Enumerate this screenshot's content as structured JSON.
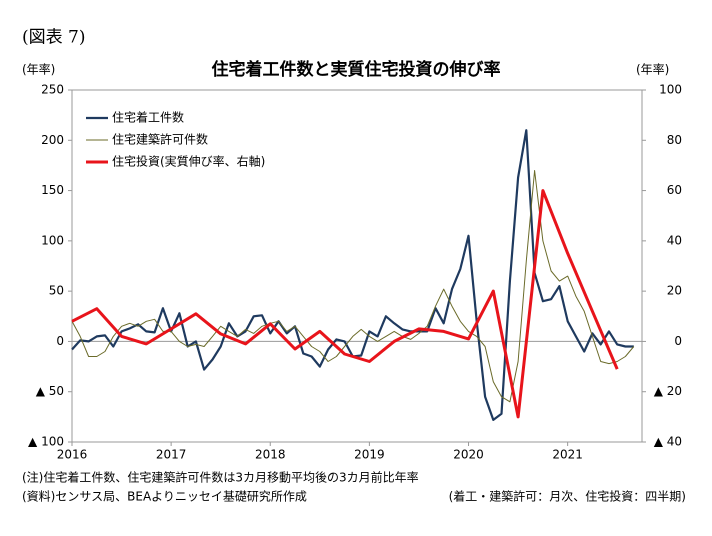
{
  "chart_data": {
    "type": "line",
    "figure_label": "(図表 7)",
    "title": "住宅着工件数と実質住宅投資の伸び率",
    "y_unit": "(年率)",
    "y2_unit": "(年率)",
    "note": "(注)住宅着工件数、住宅建築許可件数は3カ月移動平均後の3カ月前比年率",
    "source": "(資料)センサス局、BEAよりニッセイ基礎研究所作成",
    "frequency_note": "(着工・建築許可：月次、住宅投資：四半期)",
    "x": [
      2016,
      2016.083,
      2016.167,
      2016.25,
      2016.333,
      2016.417,
      2016.5,
      2016.583,
      2016.667,
      2016.75,
      2016.833,
      2016.917,
      2017,
      2017.083,
      2017.167,
      2017.25,
      2017.333,
      2017.417,
      2017.5,
      2017.583,
      2017.667,
      2017.75,
      2017.833,
      2017.917,
      2018,
      2018.083,
      2018.167,
      2018.25,
      2018.333,
      2018.417,
      2018.5,
      2018.583,
      2018.667,
      2018.75,
      2018.833,
      2018.917,
      2019,
      2019.083,
      2019.167,
      2019.25,
      2019.333,
      2019.417,
      2019.5,
      2019.583,
      2019.667,
      2019.75,
      2019.833,
      2019.917,
      2020,
      2020.083,
      2020.167,
      2020.25,
      2020.333,
      2020.417,
      2020.5,
      2020.583,
      2020.667,
      2020.75,
      2020.833,
      2020.917,
      2021,
      2021.083,
      2021.167,
      2021.25,
      2021.333,
      2021.417,
      2021.5,
      2021.583,
      2021.667
    ],
    "series": [
      {
        "name": "住宅着工件数",
        "color": "#1f3a5f",
        "width": 2.2,
        "values": [
          -8,
          1,
          0,
          5,
          6,
          -5,
          10,
          13,
          17,
          10,
          9,
          33,
          10,
          28,
          -5,
          0,
          -28,
          -18,
          -5,
          18,
          5,
          10,
          25,
          26,
          8,
          20,
          8,
          15,
          -12,
          -15,
          -25,
          -8,
          2,
          0,
          -15,
          -14,
          10,
          5,
          25,
          18,
          12,
          10,
          10,
          10,
          33,
          18,
          52,
          72,
          105,
          20,
          -55,
          -78,
          -72,
          60,
          163,
          210,
          68,
          40,
          42,
          55,
          20,
          5,
          -10,
          8,
          -3,
          10,
          -3,
          -5,
          -5
        ]
      },
      {
        "name": "住宅建築許可件数",
        "color": "#6b6b2a",
        "width": 1,
        "values": [
          20,
          5,
          -15,
          -15,
          -10,
          5,
          15,
          18,
          15,
          20,
          22,
          10,
          10,
          0,
          -5,
          -3,
          -5,
          5,
          15,
          10,
          5,
          12,
          8,
          15,
          18,
          20,
          10,
          15,
          5,
          -5,
          -10,
          -20,
          -15,
          -5,
          5,
          12,
          5,
          0,
          5,
          10,
          5,
          2,
          8,
          15,
          35,
          52,
          35,
          20,
          10,
          5,
          -5,
          -40,
          -55,
          -60,
          -20,
          80,
          170,
          100,
          70,
          60,
          65,
          45,
          30,
          5,
          -20,
          -22,
          -20,
          -15,
          -5
        ]
      },
      {
        "name": "住宅投資(実質伸び率、右軸)",
        "color": "#e8141b",
        "width": 3,
        "axis": "y2",
        "x": [
          2016,
          2016.25,
          2016.5,
          2016.75,
          2017,
          2017.25,
          2017.5,
          2017.75,
          2018,
          2018.25,
          2018.5,
          2018.75,
          2019,
          2019.25,
          2019.5,
          2019.75,
          2020,
          2020.25,
          2020.5,
          2020.75,
          2021,
          2021.25,
          2021.5
        ],
        "values": [
          8,
          13,
          2,
          -1,
          5,
          11,
          3,
          -1,
          7,
          -3,
          4,
          -5,
          -8,
          0,
          5,
          4,
          1,
          20,
          -30,
          60,
          35,
          12,
          -11
        ]
      }
    ],
    "xlim": [
      2016,
      2021.75
    ],
    "xticks": [
      2016,
      2017,
      2018,
      2019,
      2020,
      2021
    ],
    "ylim": [
      -100,
      250
    ],
    "yticks": [
      250,
      200,
      150,
      100,
      50,
      0,
      {
        "value": -50,
        "label": "▲ 50"
      },
      {
        "value": -100,
        "label": "▲ 100"
      }
    ],
    "y2lim": [
      -40,
      100
    ],
    "y2ticks": [
      100,
      80,
      60,
      40,
      20,
      0,
      {
        "value": -20,
        "label": "▲ 20"
      },
      {
        "value": -40,
        "label": "▲ 40"
      }
    ],
    "legend": "upper left"
  }
}
